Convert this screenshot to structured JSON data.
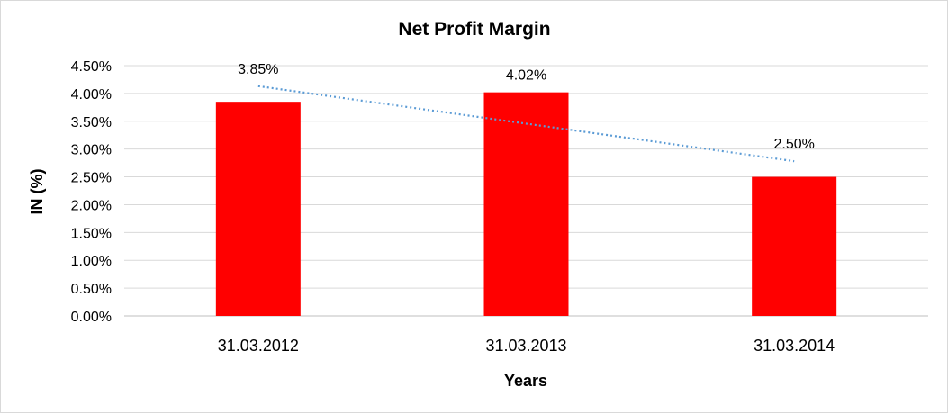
{
  "chart_data": {
    "type": "bar",
    "title": "Net Profit Margin",
    "xlabel": "Years",
    "ylabel": "IN (%)",
    "categories": [
      "31.03.2012",
      "31.03.2013",
      "31.03.2014"
    ],
    "values": [
      3.85,
      4.02,
      2.5
    ],
    "data_labels": [
      "3.85%",
      "4.02%",
      "2.50%"
    ],
    "ylim": [
      0,
      4.5
    ],
    "yticks": [
      0,
      0.5,
      1.0,
      1.5,
      2.0,
      2.5,
      3.0,
      3.5,
      4.0,
      4.5
    ],
    "ytick_labels": [
      "0.00%",
      "0.50%",
      "1.00%",
      "1.50%",
      "2.00%",
      "2.50%",
      "3.00%",
      "3.50%",
      "4.00%",
      "4.50%"
    ],
    "grid": true,
    "legend": false,
    "trendline": {
      "type": "linear",
      "style": "dotted"
    },
    "colors": {
      "bar": "#ff0000",
      "trendline": "#5b9bd5",
      "grid": "#d9d9d9",
      "axis": "#bfbfbf"
    }
  }
}
